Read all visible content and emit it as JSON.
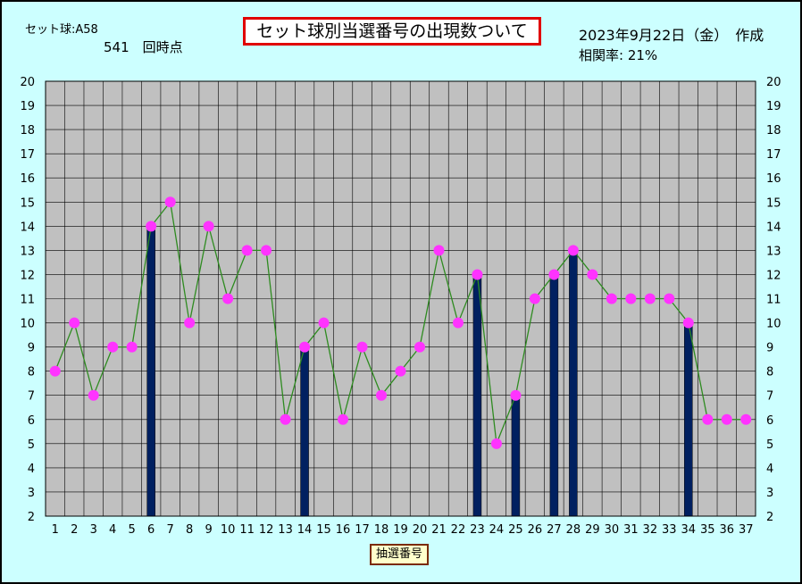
{
  "header": {
    "set_label": "セット球:A58",
    "draw_count": "541　回時点",
    "title": "セット球別当選番号の出現数ついて",
    "date": "2023年9月22日（金）　作成",
    "correlation": "相関率:  21%"
  },
  "chart_data": {
    "type": "bar",
    "title": "セット球別当選番号の出現数ついて",
    "xlabel": "抽選番号",
    "ylabel": "",
    "ylim": [
      2,
      20
    ],
    "grid": true,
    "colors": {
      "bar": "#002060",
      "line": "#2e8b20",
      "marker": "#ff33ff",
      "plot_bg": "#c0c0c0"
    },
    "categories": [
      "1",
      "2",
      "3",
      "4",
      "5",
      "6",
      "7",
      "8",
      "9",
      "10",
      "11",
      "12",
      "13",
      "14",
      "15",
      "16",
      "17",
      "18",
      "19",
      "20",
      "21",
      "22",
      "23",
      "24",
      "25",
      "26",
      "27",
      "28",
      "29",
      "30",
      "31",
      "32",
      "33",
      "34",
      "35",
      "36",
      "37"
    ],
    "yticks": [
      "2",
      "3",
      "4",
      "5",
      "6",
      "7",
      "8",
      "9",
      "10",
      "11",
      "12",
      "13",
      "14",
      "15",
      "16",
      "17",
      "18",
      "19",
      "20"
    ],
    "series": [
      {
        "type": "line",
        "values": [
          8,
          10,
          7,
          9,
          9,
          14,
          15,
          10,
          14,
          11,
          13,
          13,
          6,
          9,
          10,
          6,
          9,
          7,
          8,
          9,
          13,
          10,
          12,
          5,
          7,
          11,
          12,
          13,
          12,
          11,
          11,
          11,
          11,
          10,
          6,
          6,
          6
        ]
      },
      {
        "type": "bar",
        "values": [
          null,
          null,
          null,
          null,
          null,
          14,
          null,
          null,
          null,
          null,
          null,
          null,
          null,
          9,
          null,
          null,
          null,
          null,
          null,
          null,
          null,
          null,
          12,
          null,
          7,
          null,
          12,
          13,
          null,
          null,
          null,
          null,
          null,
          10,
          null,
          null,
          null
        ]
      }
    ]
  }
}
